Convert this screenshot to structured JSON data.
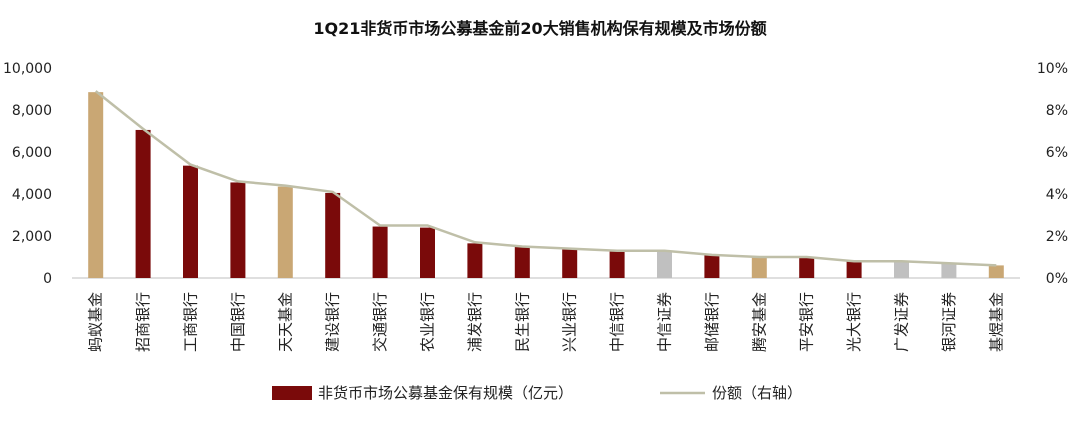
{
  "chart_data": {
    "type": "bar",
    "title": "1Q21非货币市场公募基金前20大销售机构保有规模及市场份额",
    "categories": [
      "蚂蚁基金",
      "招商银行",
      "工商银行",
      "中国银行",
      "天天基金",
      "建设银行",
      "交通银行",
      "农业银行",
      "浦发银行",
      "民生银行",
      "兴业银行",
      "中信银行",
      "中信证券",
      "邮储银行",
      "腾安基金",
      "平安银行",
      "光大银行",
      "广发证券",
      "银河证券",
      "基煜基金"
    ],
    "series": [
      {
        "name": "非货币市场公募基金保有规模（亿元）",
        "axis": "left",
        "values": [
          8850,
          7050,
          5350,
          4550,
          4350,
          4050,
          2450,
          2400,
          1650,
          1500,
          1400,
          1300,
          1300,
          1100,
          1000,
          1000,
          800,
          800,
          700,
          600
        ]
      },
      {
        "name": "份额（右轴）",
        "axis": "right",
        "type": "line",
        "values": [
          8.9,
          7.1,
          5.4,
          4.6,
          4.4,
          4.1,
          2.5,
          2.5,
          1.7,
          1.5,
          1.4,
          1.3,
          1.3,
          1.1,
          1.0,
          1.0,
          0.8,
          0.8,
          0.7,
          0.6
        ]
      }
    ],
    "bar_colors": [
      "#c9a774",
      "#7a0a0a",
      "#7a0a0a",
      "#7a0a0a",
      "#c9a774",
      "#7a0a0a",
      "#7a0a0a",
      "#7a0a0a",
      "#7a0a0a",
      "#7a0a0a",
      "#7a0a0a",
      "#7a0a0a",
      "#c0c0c0",
      "#7a0a0a",
      "#c9a774",
      "#7a0a0a",
      "#7a0a0a",
      "#c0c0c0",
      "#c0c0c0",
      "#c9a774"
    ],
    "line_color": "#bfbfa8",
    "legend_bar_color": "#7a0a0a",
    "left_axis": {
      "ylim": [
        0,
        10000
      ],
      "ticks": [
        0,
        2000,
        4000,
        6000,
        8000,
        10000
      ],
      "tick_labels": [
        "0",
        "2,000",
        "4,000",
        "6,000",
        "8,000",
        "10,000"
      ]
    },
    "right_axis": {
      "ylim": [
        0,
        10
      ],
      "ticks": [
        0,
        2,
        4,
        6,
        8,
        10
      ],
      "tick_labels": [
        "0%",
        "2%",
        "4%",
        "6%",
        "8%",
        "10%"
      ]
    },
    "grid": false,
    "legend_position": "bottom"
  }
}
